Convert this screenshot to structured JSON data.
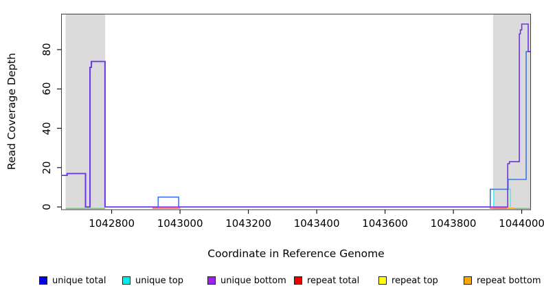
{
  "figure": {
    "background": "#ffffff",
    "plot_box_color": "#3c3c3c"
  },
  "chart_data": {
    "type": "line",
    "title": "",
    "xlabel": "Coordinate in Reference Genome",
    "ylabel": "Read Coverage Depth",
    "xlim": [
      1042652,
      1044027
    ],
    "ylim": [
      0,
      98
    ],
    "grid": false,
    "legend_position": "bottom",
    "x_ticks": [
      1042800,
      1043000,
      1043200,
      1043400,
      1043600,
      1043800,
      1044000
    ],
    "x_tick_labels": [
      "1042800",
      "1043000",
      "1043200",
      "1043400",
      "1043600",
      "1043800",
      "1044000"
    ],
    "y_ticks": [
      0,
      20,
      40,
      60,
      80
    ],
    "y_tick_labels": [
      "0",
      "20",
      "40",
      "60",
      "80"
    ],
    "shaded_regions": [
      {
        "name": "left-repeat-region",
        "x0": 1042665,
        "x1": 1042781,
        "color": "#dbdbdb"
      },
      {
        "name": "right-repeat-region",
        "x0": 1043916,
        "x1": 1044027,
        "color": "#dbdbdb"
      }
    ],
    "series": [
      {
        "name": "annotation-baseline-left",
        "color": "#74c874",
        "width": 1.4,
        "dy": 2.2,
        "points": [
          [
            1042665,
            0
          ],
          [
            1042781,
            0
          ]
        ]
      },
      {
        "name": "annotation-baseline-right",
        "color": "#74c874",
        "width": 1.4,
        "dy": 2.2,
        "points": [
          [
            1043978,
            0
          ],
          [
            1044026,
            0
          ]
        ]
      },
      {
        "name": "repeat-total-mid",
        "color": "#e85262",
        "width": 1.4,
        "dy": 1.8,
        "points": [
          [
            1042919,
            0
          ],
          [
            1043001,
            0
          ]
        ]
      },
      {
        "name": "repeat-total-right",
        "color": "#e85262",
        "width": 1.4,
        "dy": 1.8,
        "points": [
          [
            1043906,
            0
          ],
          [
            1043957,
            0
          ]
        ]
      },
      {
        "name": "repeat-bottom-right",
        "color": "#ffa520",
        "width": 1.6,
        "dy": 1.8,
        "points": [
          [
            1043957,
            0
          ],
          [
            1043979,
            0
          ]
        ]
      },
      {
        "name": "unique-top",
        "color": "#55eaea",
        "width": 1.6,
        "dy": 0,
        "points": [
          [
            1043918,
            0
          ],
          [
            1043918,
            9
          ],
          [
            1043967,
            9
          ],
          [
            1043967,
            0
          ]
        ]
      },
      {
        "name": "unique-total",
        "color": "#3d74ec",
        "width": 1.6,
        "dy": 0,
        "points": [
          [
            1042652,
            16
          ],
          [
            1042670,
            16
          ],
          [
            1042670,
            17
          ],
          [
            1042724,
            17
          ],
          [
            1042724,
            0
          ],
          [
            1042737,
            0
          ],
          [
            1042737,
            71
          ],
          [
            1042741,
            71
          ],
          [
            1042741,
            74
          ],
          [
            1042781,
            74
          ],
          [
            1042781,
            0
          ],
          [
            1042936,
            0
          ],
          [
            1042936,
            5
          ],
          [
            1042996,
            5
          ],
          [
            1042996,
            0
          ],
          [
            1043908,
            0
          ],
          [
            1043908,
            9
          ],
          [
            1043960,
            9
          ],
          [
            1043960,
            14
          ],
          [
            1044013,
            14
          ],
          [
            1044013,
            79
          ],
          [
            1044026,
            79
          ]
        ]
      },
      {
        "name": "unique-bottom",
        "color": "#7030e8",
        "width": 1.6,
        "dy": 0,
        "points": [
          [
            1042652,
            16
          ],
          [
            1042669,
            16
          ],
          [
            1042669,
            17
          ],
          [
            1042723,
            17
          ],
          [
            1042723,
            0
          ],
          [
            1042736,
            0
          ],
          [
            1042736,
            71
          ],
          [
            1042740,
            71
          ],
          [
            1042740,
            74
          ],
          [
            1042780,
            74
          ],
          [
            1042780,
            0
          ],
          [
            1043959,
            0
          ],
          [
            1043959,
            22
          ],
          [
            1043964,
            22
          ],
          [
            1043964,
            23
          ],
          [
            1043993,
            23
          ],
          [
            1043993,
            88
          ],
          [
            1043996,
            88
          ],
          [
            1043996,
            90
          ],
          [
            1044000,
            90
          ],
          [
            1044000,
            93
          ],
          [
            1044019,
            93
          ],
          [
            1044019,
            79
          ],
          [
            1044026,
            79
          ]
        ]
      }
    ],
    "legend": [
      {
        "label": "unique total",
        "color": "#0000ee"
      },
      {
        "label": "unique top",
        "color": "#00eeee"
      },
      {
        "label": "unique bottom",
        "color": "#a020f0"
      },
      {
        "label": "repeat total",
        "color": "#ee0000"
      },
      {
        "label": "repeat top",
        "color": "#ffff00"
      },
      {
        "label": "repeat bottom",
        "color": "#ffa500"
      }
    ]
  }
}
